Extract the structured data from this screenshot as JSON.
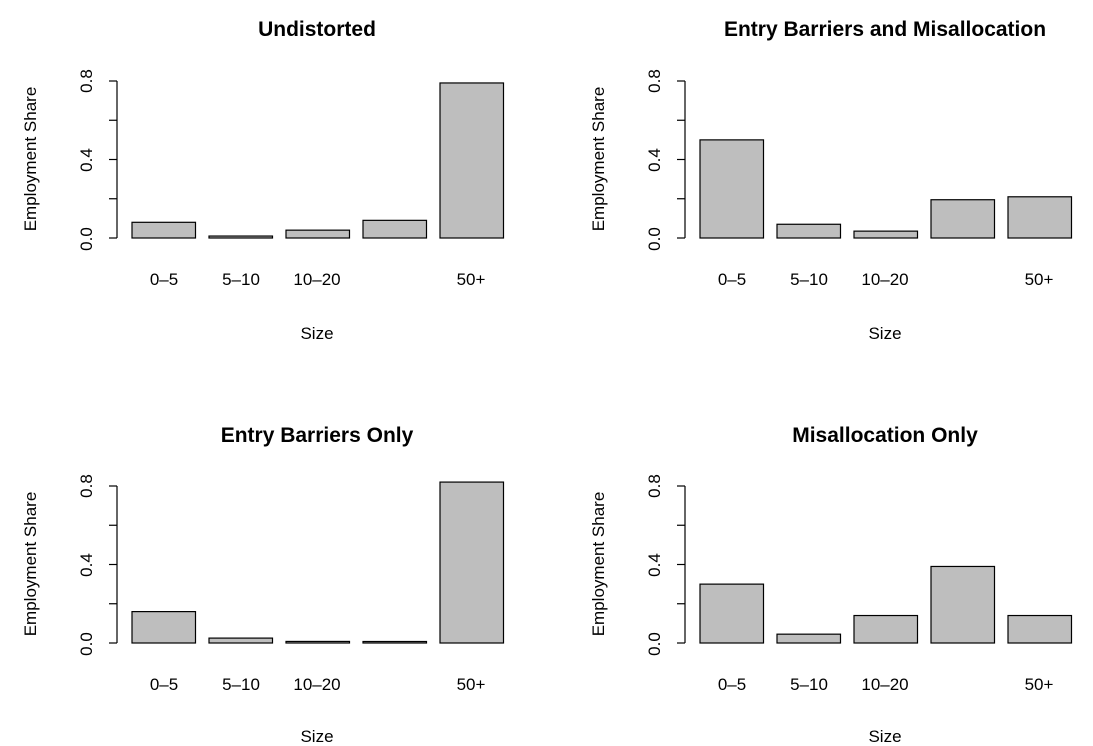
{
  "chart_data": [
    {
      "type": "bar",
      "title": "Undistorted",
      "xlabel": "Size",
      "ylabel": "Employment Share",
      "categories": [
        "0–5",
        "5–10",
        "10–20",
        "",
        "50+"
      ],
      "values": [
        0.08,
        0.01,
        0.04,
        0.09,
        0.79
      ],
      "ylim": [
        0,
        0.8
      ],
      "yticks": [
        "0.0",
        "0.4",
        "0.8"
      ],
      "bar_color": "#bebebe"
    },
    {
      "type": "bar",
      "title": "Entry Barriers and Misallocation",
      "xlabel": "Size",
      "ylabel": "Employment Share",
      "categories": [
        "0–5",
        "5–10",
        "10–20",
        "",
        "50+"
      ],
      "values": [
        0.5,
        0.07,
        0.035,
        0.195,
        0.21
      ],
      "ylim": [
        0,
        0.8
      ],
      "yticks": [
        "0.0",
        "0.4",
        "0.8"
      ],
      "bar_color": "#bebebe"
    },
    {
      "type": "bar",
      "title": "Entry Barriers Only",
      "xlabel": "Size",
      "ylabel": "Employment Share",
      "categories": [
        "0–5",
        "5–10",
        "10–20",
        "",
        "50+"
      ],
      "values": [
        0.16,
        0.025,
        0.008,
        0.003,
        0.82
      ],
      "ylim": [
        0,
        0.8
      ],
      "yticks": [
        "0.0",
        "0.4",
        "0.8"
      ],
      "bar_color": "#bebebe"
    },
    {
      "type": "bar",
      "title": "Misallocation Only",
      "xlabel": "Size",
      "ylabel": "Employment Share",
      "categories": [
        "0–5",
        "5–10",
        "10–20",
        "",
        "50+"
      ],
      "values": [
        0.3,
        0.045,
        0.14,
        0.39,
        0.14
      ],
      "ylim": [
        0,
        0.8
      ],
      "yticks": [
        "0.0",
        "0.4",
        "0.8"
      ],
      "bar_color": "#bebebe"
    }
  ]
}
